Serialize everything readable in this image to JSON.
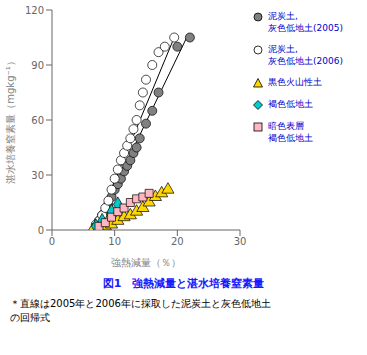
{
  "chart_data": {
    "type": "scatter",
    "title": "図1　強熱減量と湛水培養窒素量",
    "footnote": "＊直線は2005年と2006年に採取した泥炭土と灰色低地土\nの回帰式",
    "xlabel": "強熱減量（％）",
    "ylabel": "湛水培養窒素量（mgkg⁻¹）",
    "xlim": [
      0,
      30
    ],
    "ylim": [
      0,
      120
    ],
    "xticks": [
      0,
      10,
      20,
      30
    ],
    "yticks": [
      0,
      30,
      60,
      90,
      120
    ],
    "grid": false,
    "legend": "right",
    "series": [
      {
        "type": "line",
        "line_style": "solid",
        "color": "#000000",
        "x": [
          7.0,
          21.5
        ],
        "values": [
          2.0,
          105.0
        ]
      },
      {
        "type": "line",
        "line_style": "solid",
        "color": "#000000",
        "x": [
          7.0,
          19.5
        ],
        "values": [
          2.0,
          105.0
        ]
      },
      {
        "type": "scatter",
        "name": "泥炭土,\n灰色低地土(2005)",
        "marker": "circle",
        "color": "#808080",
        "x": [
          7.0,
          7.5,
          8.0,
          8.5,
          9.0,
          9.5,
          10.0,
          10.5,
          11.0,
          11.5,
          12.0,
          12.5,
          13.0,
          13.5,
          14.0,
          15.0,
          16.0,
          17.0,
          20.0,
          22.0
        ],
        "values": [
          2,
          5,
          8,
          10,
          14,
          18,
          22,
          25,
          28,
          32,
          35,
          38,
          42,
          45,
          50,
          58,
          65,
          75,
          100,
          105
        ]
      },
      {
        "type": "scatter",
        "name": "泥炭土,\n灰色低地土(2006)",
        "marker": "circle",
        "color": "#ffffff",
        "x": [
          7.0,
          7.5,
          8.0,
          8.5,
          9.0,
          9.5,
          10.0,
          10.5,
          11.0,
          11.5,
          12.0,
          12.5,
          13.0,
          13.5,
          14.0,
          14.5,
          15.0,
          16.0,
          17.0,
          18.0,
          19.5
        ],
        "values": [
          3,
          5,
          8,
          12,
          16,
          22,
          28,
          33,
          38,
          42,
          46,
          50,
          55,
          60,
          68,
          75,
          82,
          90,
          97,
          100,
          105
        ]
      },
      {
        "type": "scatter",
        "name": "黒色火山性土",
        "marker": "triangle",
        "color": "#FFD700",
        "x": [
          6.5,
          7.5,
          8.5,
          9.5,
          10.5,
          11.5,
          12.5,
          13.5,
          14.5,
          15.5,
          16.5,
          17.5,
          18.5
        ],
        "values": [
          0,
          1,
          2,
          3,
          5,
          7,
          8,
          10,
          12,
          15,
          18,
          20,
          22
        ]
      },
      {
        "type": "scatter",
        "name": "褐色低地土",
        "marker": "diamond",
        "color": "#00CCCC",
        "x": [
          7.0,
          8.0,
          9.5,
          10.5
        ],
        "values": [
          2,
          5,
          10,
          14
        ]
      },
      {
        "type": "scatter",
        "name": "暗色表層\n褐色低地土",
        "marker": "square",
        "color": "#FFB6C1",
        "x": [
          7.5,
          8.5,
          9.5,
          10.5,
          11.5,
          12.5,
          13.5,
          14.5,
          15.5
        ],
        "values": [
          2,
          4,
          7,
          10,
          12,
          15,
          17,
          18,
          20
        ]
      }
    ]
  }
}
